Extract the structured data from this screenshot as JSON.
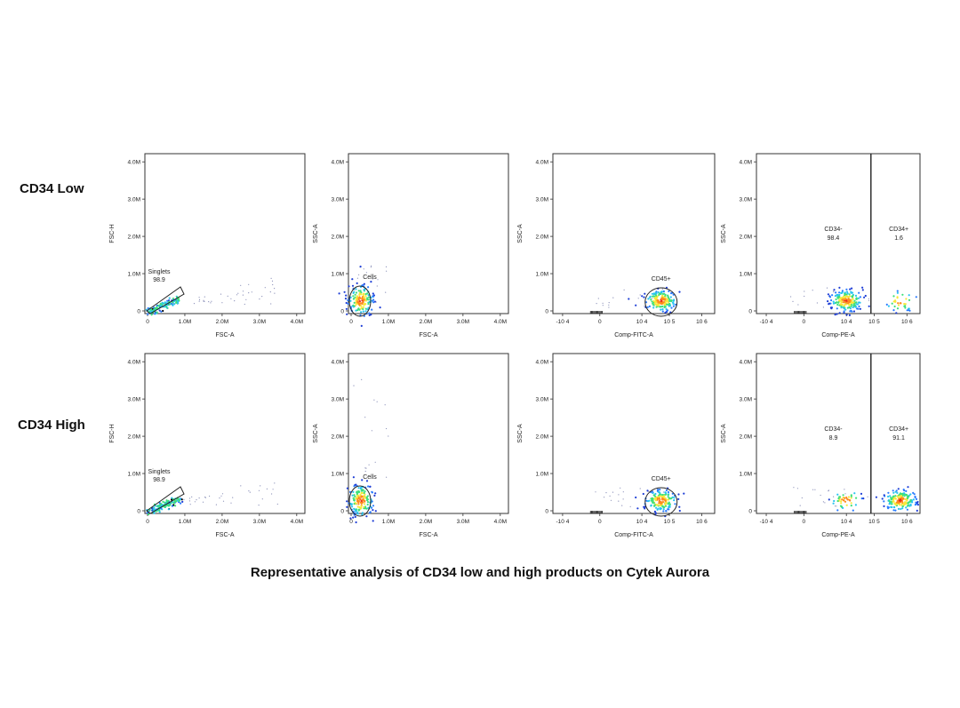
{
  "rows": [
    {
      "label": "CD34 Low"
    },
    {
      "label": "CD34 High"
    }
  ],
  "caption": "Representative analysis of CD34 low and high products on Cytek Aurora",
  "chart_data": [
    {
      "type": "scatter",
      "row": "CD34 Low",
      "xlabel": "FSC-A",
      "ylabel": "FSC-H",
      "xticks": [
        "0",
        "1.0M",
        "2.0M",
        "3.0M",
        "4.0M"
      ],
      "yticks": [
        "0",
        "1.0M",
        "2.0M",
        "3.0M",
        "4.0M"
      ],
      "xlim": [
        0,
        4200000
      ],
      "ylim": [
        0,
        4200000
      ],
      "gate": {
        "label": "Singlets",
        "value": "98.9",
        "shape": "polygon"
      },
      "populations": [
        {
          "x": 300000,
          "y": 250000,
          "sx": 160000,
          "sy": 120000,
          "n": 140,
          "kind": "diag"
        }
      ]
    },
    {
      "type": "scatter",
      "row": "CD34 Low",
      "xlabel": "FSC-A",
      "ylabel": "SSC-A",
      "xticks": [
        "0",
        "1.0M",
        "2.0M",
        "3.0M",
        "4.0M"
      ],
      "yticks": [
        "0",
        "1.0M",
        "2.0M",
        "3.0M",
        "4.0M"
      ],
      "xlim": [
        0,
        4200000
      ],
      "ylim": [
        0,
        4200000
      ],
      "gate": {
        "label": "Cells",
        "value": "",
        "shape": "ellipse"
      },
      "populations": [
        {
          "x": 270000,
          "y": 280000,
          "sx": 80000,
          "sy": 130000,
          "n": 160,
          "kind": "blob"
        }
      ]
    },
    {
      "type": "scatter",
      "row": "CD34 Low",
      "xlabel": "Comp-FITC-A",
      "ylabel": "SSC-A",
      "xscale": "log",
      "xticks": [
        "-10 4",
        "0",
        "10 4",
        "10 5",
        "10 6"
      ],
      "yticks": [
        "0",
        "1.0M",
        "2.0M",
        "3.0M",
        "4.0M"
      ],
      "ylim": [
        0,
        4200000
      ],
      "gate": {
        "label": "CD45+",
        "value": "",
        "shape": "ellipse"
      },
      "populations": [
        {
          "x": "10^4.7",
          "y": 280000,
          "n": 170,
          "kind": "blob"
        }
      ]
    },
    {
      "type": "scatter",
      "row": "CD34 Low",
      "xlabel": "Comp-PE-A",
      "ylabel": "SSC-A",
      "xscale": "log",
      "xticks": [
        "-10 4",
        "0",
        "10 4",
        "10 5",
        "10 6"
      ],
      "yticks": [
        "0",
        "1.0M",
        "2.0M",
        "3.0M",
        "4.0M"
      ],
      "ylim": [
        0,
        4200000
      ],
      "gates": [
        {
          "label": "CD34-",
          "value": "98.4"
        },
        {
          "label": "CD34+",
          "value": "1.6"
        }
      ],
      "populations": [
        {
          "x": "10^4",
          "y": 280000,
          "n": 190,
          "kind": "blob"
        },
        {
          "x": "10^5.8",
          "y": 260000,
          "n": 35,
          "kind": "blob"
        }
      ]
    },
    {
      "type": "scatter",
      "row": "CD34 High",
      "xlabel": "FSC-A",
      "ylabel": "FSC-H",
      "xticks": [
        "0",
        "1.0M",
        "2.0M",
        "3.0M",
        "4.0M"
      ],
      "yticks": [
        "0",
        "1.0M",
        "2.0M",
        "3.0M",
        "4.0M"
      ],
      "xlim": [
        0,
        4200000
      ],
      "ylim": [
        0,
        4200000
      ],
      "gate": {
        "label": "Singlets",
        "value": "98.9",
        "shape": "polygon"
      },
      "populations": [
        {
          "x": 300000,
          "y": 250000,
          "sx": 160000,
          "sy": 120000,
          "n": 140,
          "kind": "diag"
        }
      ]
    },
    {
      "type": "scatter",
      "row": "CD34 High",
      "xlabel": "FSC-A",
      "ylabel": "SSC-A",
      "xticks": [
        "0",
        "1.0M",
        "2.0M",
        "3.0M",
        "4.0M"
      ],
      "yticks": [
        "0",
        "1.0M",
        "2.0M",
        "3.0M",
        "4.0M"
      ],
      "xlim": [
        0,
        4200000
      ],
      "ylim": [
        0,
        4200000
      ],
      "gate": {
        "label": "Cells",
        "value": "",
        "shape": "ellipse"
      },
      "populations": [
        {
          "x": 270000,
          "y": 280000,
          "sx": 80000,
          "sy": 130000,
          "n": 160,
          "kind": "blob"
        }
      ]
    },
    {
      "type": "scatter",
      "row": "CD34 High",
      "xlabel": "Comp-FITC-A",
      "ylabel": "SSC-A",
      "xscale": "log",
      "xticks": [
        "-10 4",
        "0",
        "10 4",
        "10 5",
        "10 6"
      ],
      "yticks": [
        "0",
        "1.0M",
        "2.0M",
        "3.0M",
        "4.0M"
      ],
      "ylim": [
        0,
        4200000
      ],
      "gate": {
        "label": "CD45+",
        "value": "",
        "shape": "ellipse"
      },
      "populations": [
        {
          "x": "10^4.7",
          "y": 280000,
          "n": 170,
          "kind": "blob"
        }
      ]
    },
    {
      "type": "scatter",
      "row": "CD34 High",
      "xlabel": "Comp-PE-A",
      "ylabel": "SSC-A",
      "xscale": "log",
      "xticks": [
        "-10 4",
        "0",
        "10 4",
        "10 5",
        "10 6"
      ],
      "yticks": [
        "0",
        "1.0M",
        "2.0M",
        "3.0M",
        "4.0M"
      ],
      "ylim": [
        0,
        4200000
      ],
      "gates": [
        {
          "label": "CD34-",
          "value": "8.9"
        },
        {
          "label": "CD34+",
          "value": "91.1"
        }
      ],
      "populations": [
        {
          "x": "10^4",
          "y": 280000,
          "n": 45,
          "kind": "blob"
        },
        {
          "x": "10^5.8",
          "y": 280000,
          "n": 170,
          "kind": "blob"
        }
      ]
    }
  ]
}
